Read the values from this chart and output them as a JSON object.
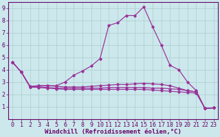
{
  "background_color": "#cce8ec",
  "grid_color": "#aacccc",
  "line_color": "#993399",
  "xlim": [
    -0.5,
    23.5
  ],
  "ylim": [
    0,
    9.5
  ],
  "xlabel": "Windchill (Refroidissement éolien,°C)",
  "xlabel_fontsize": 6.5,
  "xticks": [
    0,
    1,
    2,
    3,
    4,
    5,
    6,
    7,
    8,
    9,
    10,
    11,
    12,
    13,
    14,
    15,
    16,
    17,
    18,
    19,
    20,
    21,
    22,
    23
  ],
  "yticks": [
    1,
    2,
    3,
    4,
    5,
    6,
    7,
    8,
    9
  ],
  "tick_fontsize": 6.0,
  "series1": [
    [
      0,
      4.6
    ],
    [
      1,
      3.8
    ],
    [
      2,
      2.6
    ],
    [
      3,
      2.7
    ],
    [
      4,
      2.7
    ],
    [
      5,
      2.7
    ],
    [
      6,
      3.0
    ],
    [
      7,
      3.55
    ],
    [
      8,
      3.9
    ],
    [
      9,
      4.3
    ],
    [
      10,
      4.9
    ],
    [
      11,
      7.6
    ],
    [
      12,
      7.8
    ],
    [
      13,
      8.4
    ],
    [
      14,
      8.4
    ],
    [
      15,
      9.1
    ],
    [
      16,
      7.5
    ],
    [
      17,
      6.0
    ],
    [
      18,
      4.35
    ],
    [
      19,
      4.0
    ],
    [
      20,
      3.0
    ],
    [
      21,
      2.3
    ],
    [
      22,
      0.85
    ],
    [
      23,
      0.9
    ]
  ],
  "series2": [
    [
      0,
      4.6
    ],
    [
      1,
      3.8
    ],
    [
      2,
      2.65
    ],
    [
      3,
      2.7
    ],
    [
      4,
      2.7
    ],
    [
      5,
      2.65
    ],
    [
      6,
      2.6
    ],
    [
      7,
      2.6
    ],
    [
      8,
      2.6
    ],
    [
      9,
      2.65
    ],
    [
      10,
      2.7
    ],
    [
      11,
      2.75
    ],
    [
      12,
      2.8
    ],
    [
      13,
      2.8
    ],
    [
      14,
      2.85
    ],
    [
      15,
      2.9
    ],
    [
      16,
      2.85
    ],
    [
      17,
      2.8
    ],
    [
      18,
      2.7
    ],
    [
      19,
      2.5
    ],
    [
      20,
      2.3
    ],
    [
      21,
      2.2
    ],
    [
      22,
      0.85
    ],
    [
      23,
      0.9
    ]
  ],
  "series3": [
    [
      0,
      4.6
    ],
    [
      1,
      3.8
    ],
    [
      2,
      2.6
    ],
    [
      3,
      2.6
    ],
    [
      4,
      2.55
    ],
    [
      5,
      2.5
    ],
    [
      6,
      2.5
    ],
    [
      7,
      2.5
    ],
    [
      8,
      2.5
    ],
    [
      9,
      2.5
    ],
    [
      10,
      2.5
    ],
    [
      11,
      2.55
    ],
    [
      12,
      2.55
    ],
    [
      13,
      2.55
    ],
    [
      14,
      2.55
    ],
    [
      15,
      2.55
    ],
    [
      16,
      2.5
    ],
    [
      17,
      2.5
    ],
    [
      18,
      2.45
    ],
    [
      19,
      2.4
    ],
    [
      20,
      2.3
    ],
    [
      21,
      2.2
    ],
    [
      22,
      0.85
    ],
    [
      23,
      0.9
    ]
  ],
  "series4": [
    [
      0,
      4.6
    ],
    [
      1,
      3.8
    ],
    [
      2,
      2.6
    ],
    [
      3,
      2.55
    ],
    [
      4,
      2.5
    ],
    [
      5,
      2.45
    ],
    [
      6,
      2.4
    ],
    [
      7,
      2.4
    ],
    [
      8,
      2.4
    ],
    [
      9,
      2.4
    ],
    [
      10,
      2.4
    ],
    [
      11,
      2.4
    ],
    [
      12,
      2.4
    ],
    [
      13,
      2.4
    ],
    [
      14,
      2.4
    ],
    [
      15,
      2.4
    ],
    [
      16,
      2.35
    ],
    [
      17,
      2.3
    ],
    [
      18,
      2.25
    ],
    [
      19,
      2.2
    ],
    [
      20,
      2.15
    ],
    [
      21,
      2.1
    ],
    [
      22,
      0.85
    ],
    [
      23,
      0.9
    ]
  ]
}
